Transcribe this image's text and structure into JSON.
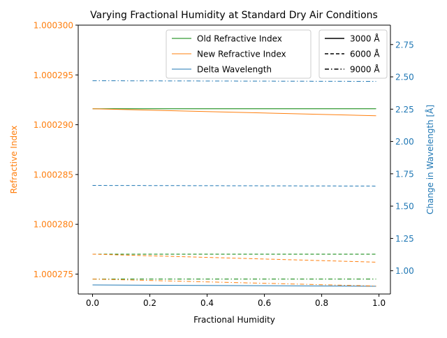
{
  "chart_data": {
    "type": "line",
    "title": "Varying Fractional Humidity at Standard Dry Air Conditions",
    "xlabel": "Fractional Humidity",
    "ylabel_left": "Refractive Index",
    "ylabel_right": "Change in Wavelength [Å]",
    "xlim": [
      -0.05,
      1.04
    ],
    "ylim_left": [
      1.000273,
      1.0003
    ],
    "ylim_right": [
      0.82,
      2.9
    ],
    "x_ticks": [
      0.0,
      0.2,
      0.4,
      0.6,
      0.8,
      1.0
    ],
    "x_tick_labels": [
      "0.0",
      "0.2",
      "0.4",
      "0.6",
      "0.8",
      "1.0"
    ],
    "left_ticks": [
      1.000275,
      1.00028,
      1.000285,
      1.00029,
      1.000295,
      1.0003
    ],
    "left_tick_labels": [
      "1.000275",
      "1.000280",
      "1.000285",
      "1.000290",
      "1.000295",
      "1.000300"
    ],
    "right_ticks": [
      1.0,
      1.25,
      1.5,
      1.75,
      2.0,
      2.25,
      2.5,
      2.75
    ],
    "right_tick_labels": [
      "1.00",
      "1.25",
      "1.50",
      "1.75",
      "2.00",
      "2.25",
      "2.50",
      "2.75"
    ],
    "colors": {
      "old": "#008000",
      "new": "#ff7f0e",
      "delta": "#1f77b4",
      "left_axis": "#ff7f0e",
      "right_axis": "#1f77b4",
      "frame": "#000000"
    },
    "legend_series": {
      "position": "top-right",
      "entries": [
        {
          "label": "Old Refractive Index",
          "color": "#008000"
        },
        {
          "label": "New Refractive Index",
          "color": "#ff7f0e"
        },
        {
          "label": "Delta Wavelength",
          "color": "#1f77b4"
        }
      ]
    },
    "legend_styles": {
      "position": "top-right",
      "entries": [
        {
          "label": "3000 Å",
          "dash": "solid"
        },
        {
          "label": "6000 Å",
          "dash": "dashed"
        },
        {
          "label": "9000 Å",
          "dash": "dashdot"
        }
      ]
    },
    "x": [
      0.0,
      0.99
    ],
    "series": [
      {
        "kind": "old",
        "axis": "left",
        "dash": "solid",
        "wavelength": "3000 Å",
        "values": [
          1.0002916,
          1.0002916
        ]
      },
      {
        "kind": "new",
        "axis": "left",
        "dash": "solid",
        "wavelength": "3000 Å",
        "values": [
          1.0002916,
          1.0002909
        ]
      },
      {
        "kind": "delta",
        "axis": "right",
        "dash": "solid",
        "wavelength": "3000 Å",
        "values": [
          0.89,
          0.88
        ]
      },
      {
        "kind": "old",
        "axis": "left",
        "dash": "dashed",
        "wavelength": "6000 Å",
        "values": [
          1.000277,
          1.000277
        ]
      },
      {
        "kind": "new",
        "axis": "left",
        "dash": "dashed",
        "wavelength": "6000 Å",
        "values": [
          1.000277,
          1.0002762
        ]
      },
      {
        "kind": "delta",
        "axis": "right",
        "dash": "dashed",
        "wavelength": "6000 Å",
        "values": [
          1.66,
          1.655
        ]
      },
      {
        "kind": "old",
        "axis": "left",
        "dash": "dashdot",
        "wavelength": "9000 Å",
        "values": [
          1.0002745,
          1.0002745
        ]
      },
      {
        "kind": "new",
        "axis": "left",
        "dash": "dashdot",
        "wavelength": "9000 Å",
        "values": [
          1.0002745,
          1.0002738
        ]
      },
      {
        "kind": "delta",
        "axis": "right",
        "dash": "dashdot",
        "wavelength": "9000 Å",
        "values": [
          2.47,
          2.465
        ]
      }
    ]
  }
}
